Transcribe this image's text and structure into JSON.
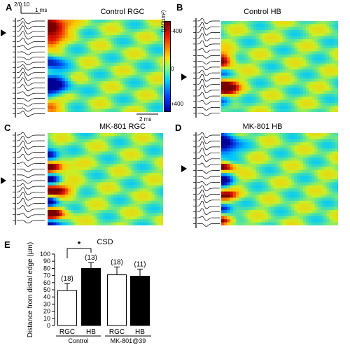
{
  "panels": {
    "A": {
      "letter": "A",
      "title": "Control RGC",
      "scale_bar": "2 ms"
    },
    "B": {
      "letter": "B",
      "title": "Control HB"
    },
    "C": {
      "letter": "C",
      "title": "MK-801 RGC"
    },
    "D": {
      "letter": "D",
      "title": "MK-801 HB"
    },
    "E": {
      "letter": "E"
    }
  },
  "trace_scale": {
    "top_label": "2/0.10",
    "bottom_label": "1 ms"
  },
  "colorbar": {
    "unit": "(µV/µm²)",
    "ticks": [
      "-400",
      "0",
      "+400"
    ],
    "colors": [
      "#7a0000",
      "#e81c00",
      "#ffdc00",
      "#7fff7f",
      "#00cfff",
      "#0000a0"
    ]
  },
  "chart_data": {
    "type": "bar",
    "title": "CSD",
    "ylabel": "Distance from distal edge (µm)",
    "ylim": [
      0,
      100
    ],
    "yticks": [
      "0",
      "10",
      "20",
      "30",
      "40",
      "50",
      "60",
      "70",
      "80",
      "90",
      "100"
    ],
    "categories": [
      "RGC",
      "HB",
      "RGC",
      "HB"
    ],
    "groups": [
      "Control",
      "MK-801@39"
    ],
    "values": [
      49,
      80,
      71,
      69
    ],
    "errors": [
      10,
      8,
      11,
      10
    ],
    "n_labels": [
      "(18)",
      "(13)",
      "(18)",
      "(11)"
    ],
    "fill_colors": [
      "#ffffff",
      "#000000",
      "#ffffff",
      "#000000"
    ],
    "significance": {
      "between": [
        0,
        1
      ],
      "label": "*"
    }
  }
}
